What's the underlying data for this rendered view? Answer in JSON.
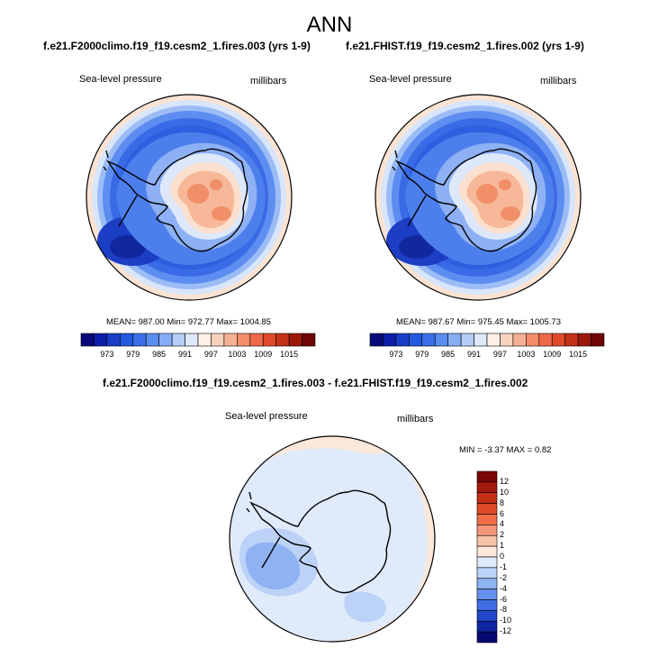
{
  "figure": {
    "title": "ANN",
    "panels": [
      {
        "title": "f.e21.F2000climo.f19_f19.cesm2_1.fires.003 (yrs 1-9)",
        "variable": "Sea-level pressure",
        "units": "millibars",
        "stats": "MEAN= 987.00  Min= 972.77  Max= 1004.85"
      },
      {
        "title": "f.e21.FHIST.f19_f19.cesm2_1.fires.002 (yrs 1-9)",
        "variable": "Sea-level pressure",
        "units": "millibars",
        "stats": "MEAN= 987.67  Min= 975.45  Max= 1005.73"
      }
    ],
    "diff": {
      "title": "f.e21.F2000climo.f19_f19.cesm2_1.fires.003 - f.e21.FHIST.f19_f19.cesm2_1.fires.002",
      "variable": "Sea-level pressure",
      "units": "millibars",
      "stats": "MIN =  -3.37 MAX =   0.82"
    }
  },
  "colorbar_abs": {
    "labels": [
      "973",
      "979",
      "985",
      "991",
      "997",
      "1003",
      "1009",
      "1015"
    ],
    "colors": [
      "#08087a",
      "#0c1ea8",
      "#1a3ec8",
      "#2458de",
      "#3a6fe8",
      "#5a8df0",
      "#86aef5",
      "#b4ccf8",
      "#dde8fb",
      "#fdf0e6",
      "#f9d2bd",
      "#f6b195",
      "#f38d6c",
      "#ef6a48",
      "#e04a2a",
      "#c43218",
      "#9c1a0c",
      "#6e0606"
    ]
  },
  "colorbar_diff": {
    "labels": [
      "12",
      "10",
      "8",
      "6",
      "4",
      "2",
      "1",
      "0",
      "-1",
      "-2",
      "-4",
      "-6",
      "-8",
      "-10",
      "-12"
    ],
    "colors": [
      "#7a0606",
      "#a21a0c",
      "#c42e14",
      "#df4a26",
      "#ef6e48",
      "#f4967a",
      "#f8c2a8",
      "#fde8da",
      "#dfeafb",
      "#bcd2f7",
      "#8fb2f2",
      "#6690ec",
      "#3f6ce2",
      "#2048c8",
      "#0e26a0",
      "#060a72"
    ]
  }
}
